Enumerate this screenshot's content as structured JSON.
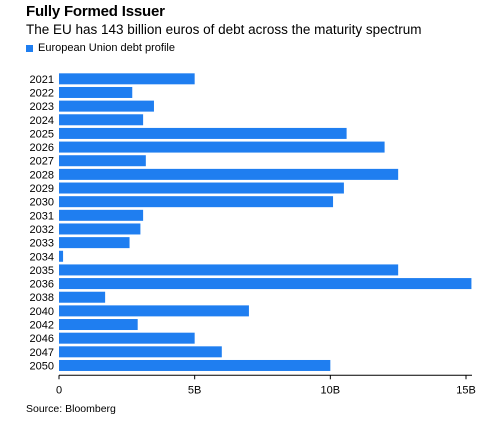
{
  "colors": {
    "bar": "#1f7ef0",
    "axis": "#000000"
  },
  "chart_data": {
    "type": "bar",
    "orientation": "horizontal",
    "title": "Fully Formed Issuer",
    "subtitle": "The EU has 143 billion euros of debt across the maturity spectrum",
    "xlim": [
      0,
      15
    ],
    "tick_values": [
      0,
      5,
      10,
      15
    ],
    "tick_labels": [
      "0",
      "5B",
      "10B",
      "15B"
    ],
    "grid": false,
    "legend_position": "top-left",
    "series": [
      {
        "name": "European Union debt profile",
        "values": [
          5.0,
          2.7,
          3.5,
          3.1,
          10.6,
          12.0,
          3.2,
          12.5,
          10.5,
          10.1,
          3.1,
          3.0,
          2.6,
          0.15,
          12.5,
          15.2,
          1.7,
          7.0,
          2.9,
          5.0,
          6.0,
          10.0
        ]
      }
    ],
    "categories": [
      "2021",
      "2022",
      "2023",
      "2024",
      "2025",
      "2026",
      "2027",
      "2028",
      "2029",
      "2030",
      "2031",
      "2032",
      "2033",
      "2034",
      "2035",
      "2036",
      "2038",
      "2040",
      "2042",
      "2046",
      "2047",
      "2050"
    ]
  },
  "source": "Source: Bloomberg"
}
